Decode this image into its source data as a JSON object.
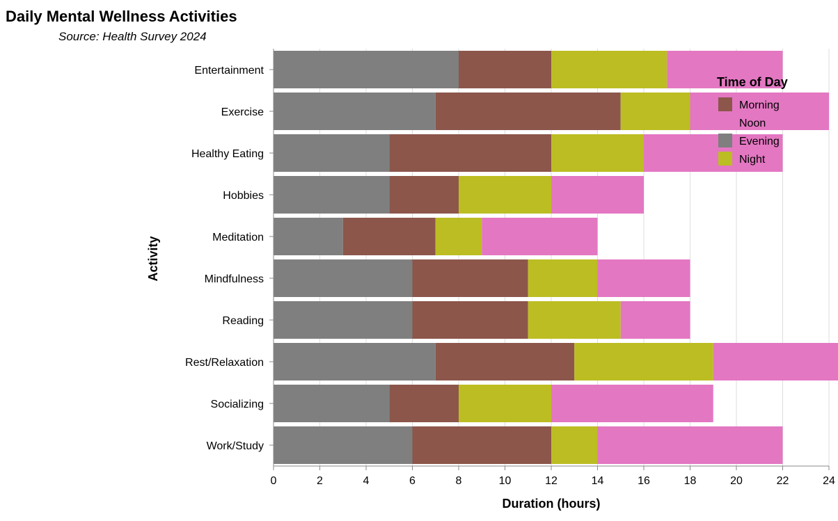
{
  "chart_data": {
    "type": "bar",
    "orientation": "horizontal",
    "stacked": true,
    "title": "Daily Mental Wellness Activities",
    "subtitle": "Source: Health Survey 2024",
    "xlabel": "Duration (hours)",
    "ylabel": "Activity",
    "xlim": [
      0,
      24
    ],
    "x_ticks": [
      0,
      2,
      4,
      6,
      8,
      10,
      12,
      14,
      16,
      18,
      20,
      22,
      24
    ],
    "grid": true,
    "legend": {
      "title": "Time of Day",
      "position": "top-right",
      "entries": [
        {
          "name": "Morning",
          "color": "#8c564b"
        },
        {
          "name": "Noon",
          "color": ""
        },
        {
          "name": "Evening",
          "color": "#7f7f7f"
        },
        {
          "name": "Night",
          "color": "#bcbd22"
        }
      ]
    },
    "categories": [
      "Entertainment",
      "Exercise",
      "Healthy Eating",
      "Hobbies",
      "Meditation",
      "Mindfulness",
      "Reading",
      "Rest/Relaxation",
      "Socializing",
      "Work/Study"
    ],
    "series": [
      {
        "color": "#7f7f7f",
        "values": [
          8,
          7,
          5,
          5,
          3,
          6,
          6,
          7,
          5,
          6
        ]
      },
      {
        "color": "#8c564b",
        "values": [
          4,
          8,
          7,
          3,
          4,
          5,
          5,
          6,
          3,
          6
        ]
      },
      {
        "color": "#bcbd22",
        "values": [
          5,
          3,
          4,
          4,
          2,
          3,
          4,
          6,
          4,
          2
        ]
      },
      {
        "color": "#e377c2",
        "values": [
          5,
          6,
          6,
          4,
          5,
          4,
          3,
          6,
          7,
          8
        ]
      }
    ]
  }
}
